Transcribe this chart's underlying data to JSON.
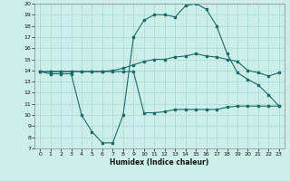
{
  "xlabel": "Humidex (Indice chaleur)",
  "bg_color": "#cceee8",
  "grid_color": "#aad8d0",
  "line_color": "#1a6b6b",
  "ylim": [
    7,
    20
  ],
  "xlim": [
    -0.5,
    23.5
  ],
  "yticks": [
    7,
    8,
    9,
    10,
    11,
    12,
    13,
    14,
    15,
    16,
    17,
    18,
    19,
    20
  ],
  "xticks": [
    0,
    1,
    2,
    3,
    4,
    5,
    6,
    7,
    8,
    9,
    10,
    11,
    12,
    13,
    14,
    15,
    16,
    17,
    18,
    19,
    20,
    21,
    22,
    23
  ],
  "line1_x": [
    0,
    1,
    2,
    3,
    4,
    5,
    6,
    7,
    8,
    9,
    10,
    11,
    12,
    13,
    14,
    15,
    16,
    17,
    18,
    19,
    20,
    21,
    22,
    23
  ],
  "line1_y": [
    13.9,
    13.7,
    13.7,
    13.7,
    10.0,
    8.5,
    7.5,
    7.5,
    10.0,
    17.0,
    18.5,
    19.0,
    19.0,
    18.8,
    19.8,
    20.0,
    19.5,
    18.0,
    15.5,
    13.8,
    13.2,
    12.7,
    11.8,
    10.8
  ],
  "line2_x": [
    0,
    1,
    2,
    3,
    4,
    5,
    6,
    7,
    8,
    9,
    10,
    11,
    12,
    13,
    14,
    15,
    16,
    17,
    18,
    19,
    20,
    21,
    22,
    23
  ],
  "line2_y": [
    13.9,
    13.9,
    13.9,
    13.9,
    13.9,
    13.9,
    13.9,
    14.0,
    14.2,
    14.5,
    14.8,
    15.0,
    15.0,
    15.2,
    15.3,
    15.5,
    15.3,
    15.2,
    15.0,
    14.8,
    14.0,
    13.8,
    13.5,
    13.8
  ],
  "line3_x": [
    0,
    1,
    2,
    3,
    4,
    5,
    6,
    7,
    8,
    9,
    10,
    11,
    12,
    13,
    14,
    15,
    16,
    17,
    18,
    19,
    20,
    21,
    22,
    23
  ],
  "line3_y": [
    13.9,
    13.9,
    13.9,
    13.9,
    13.9,
    13.9,
    13.9,
    13.9,
    13.9,
    13.9,
    10.2,
    10.2,
    10.3,
    10.5,
    10.5,
    10.5,
    10.5,
    10.5,
    10.7,
    10.8,
    10.8,
    10.8,
    10.8,
    10.8
  ]
}
